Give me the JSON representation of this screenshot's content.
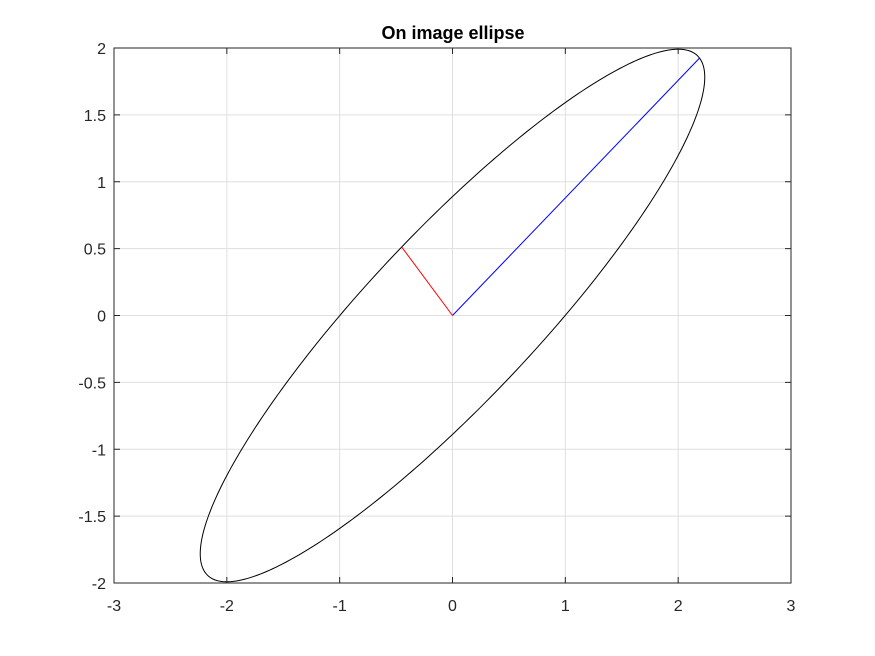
{
  "chart_data": {
    "type": "line",
    "title": "On image ellipse",
    "xlabel": "",
    "ylabel": "",
    "xlim": [
      -3,
      3
    ],
    "ylim": [
      -2,
      2
    ],
    "xticks": [
      -3,
      -2,
      -1,
      0,
      1,
      2,
      3
    ],
    "yticks": [
      -2,
      -1.5,
      -1,
      -0.5,
      0,
      0.5,
      1,
      1.5,
      2
    ],
    "xtick_labels": [
      "-3",
      "-2",
      "-1",
      "0",
      "1",
      "2",
      "3"
    ],
    "ytick_labels": [
      "-2",
      "-1.5",
      "-1",
      "-0.5",
      "0",
      "0.5",
      "1",
      "1.5",
      "2"
    ],
    "grid": true,
    "ellipse": {
      "center": [
        0,
        0
      ],
      "semi_major": 2.915,
      "semi_minor": 0.682,
      "angle_deg": 41.3,
      "color": "#000000"
    },
    "series": [
      {
        "x": [
          0,
          2.19
        ],
        "y": [
          0,
          1.925
        ],
        "color": "#0000ff"
      },
      {
        "x": [
          0,
          -0.45
        ],
        "y": [
          0,
          0.512
        ],
        "color": "#ff0000"
      }
    ]
  }
}
